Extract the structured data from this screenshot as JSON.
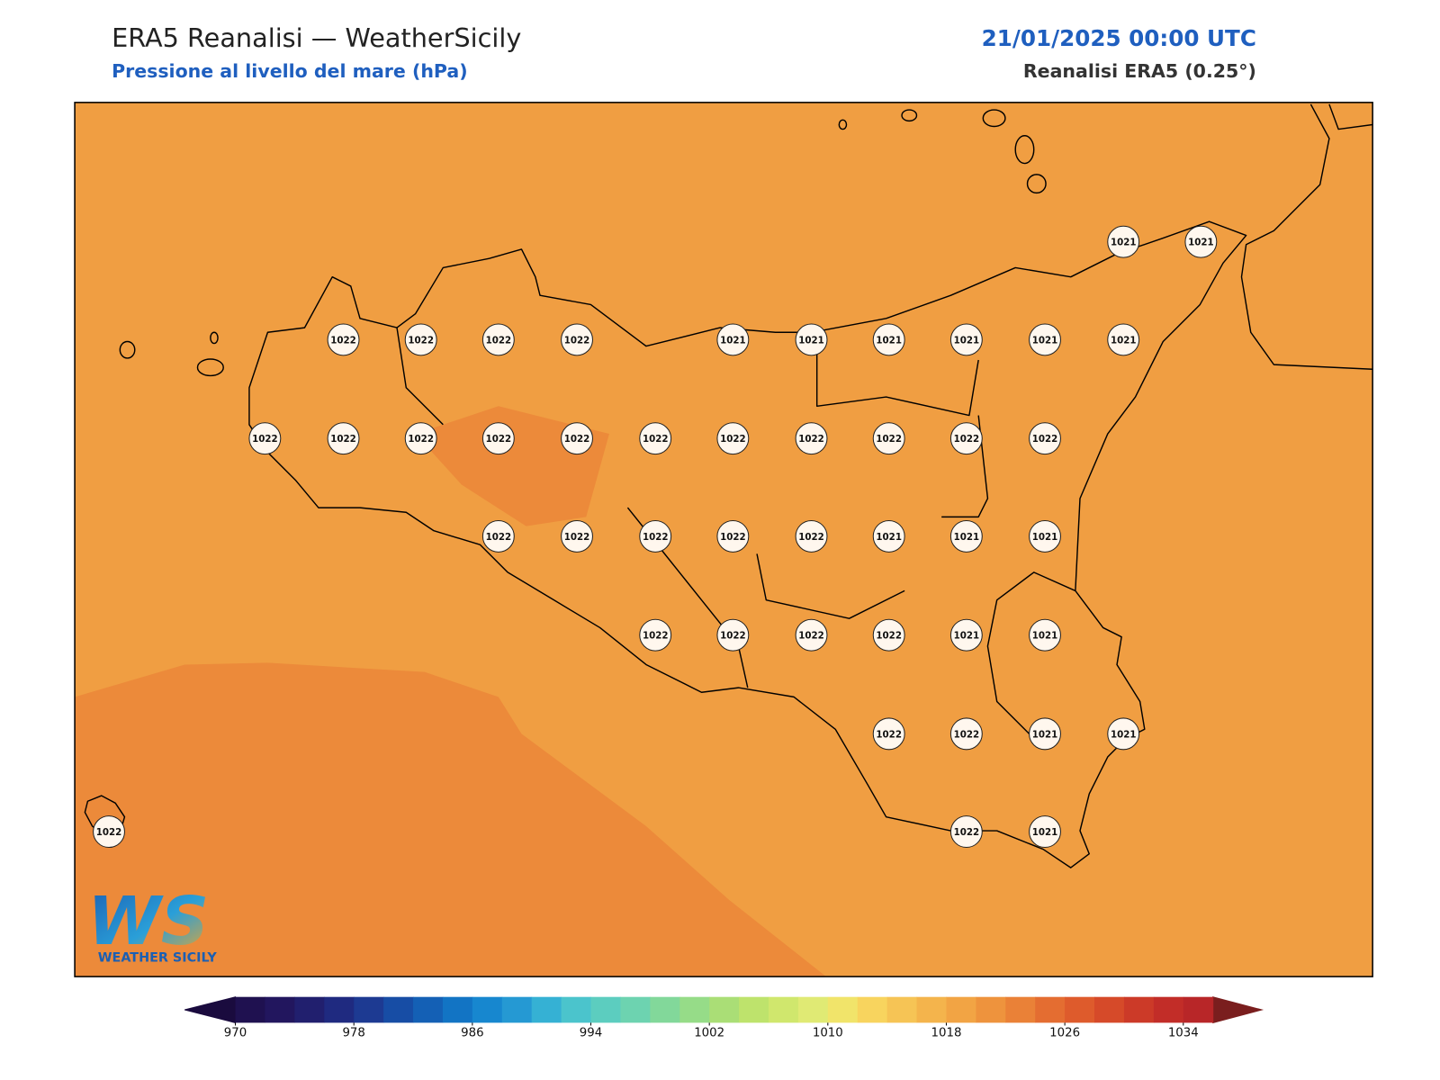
{
  "header": {
    "title": "ERA5 Reanalisi — WeatherSicily",
    "subtitle": "Pressione al livello del mare (hPa)",
    "date": "21/01/2025 00:00 UTC",
    "source": "Reanalisi ERA5 (0.25°)"
  },
  "logo": {
    "mark": "WS",
    "text": "WEATHER SICILY"
  },
  "stations": [
    1021,
    1021,
    1022,
    1022,
    1022,
    1022,
    1021,
    1021,
    1021,
    1021,
    1021,
    1021,
    1022,
    1022,
    1022,
    1022,
    1022,
    1022,
    1022,
    1022,
    1022,
    1022,
    1022,
    1022,
    1022,
    1022,
    1022,
    1022,
    1021,
    1021,
    1021,
    1022,
    1022,
    1022,
    1022,
    1021,
    1021,
    1022,
    1022,
    1021,
    1021,
    1022,
    1022,
    1021
  ],
  "colorbar": {
    "range": [
      970,
      1036
    ],
    "ticks": [
      970,
      978,
      986,
      994,
      1002,
      1010,
      1018,
      1026,
      1034
    ],
    "under": "#1a0b3e",
    "over": "#7a1e1e",
    "colors": [
      "#1f1150",
      "#22165e",
      "#211f6e",
      "#1f2a80",
      "#1d3a92",
      "#174da5",
      "#1460b5",
      "#1274c4",
      "#1787cf",
      "#2599d3",
      "#35b1d4",
      "#4bc4cc",
      "#5ccdbf",
      "#6dd3b0",
      "#82d89a",
      "#96dc88",
      "#aade76",
      "#bee36c",
      "#d0e76d",
      "#e0ea74",
      "#f1e46a",
      "#f8d45e",
      "#f6c455",
      "#f4b44c",
      "#f2a444",
      "#ee933d",
      "#ea8137",
      "#e46d31",
      "#de5b2c",
      "#d64a29",
      "#cc3a28",
      "#c22d28",
      "#b82628"
    ]
  }
}
